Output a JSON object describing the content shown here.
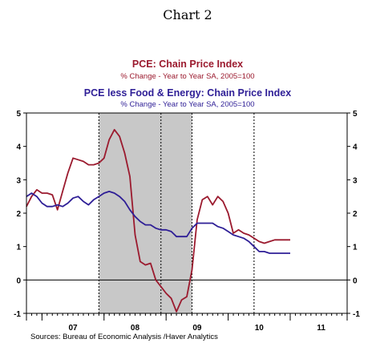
{
  "chart_data": {
    "type": "line",
    "title": "Chart 2",
    "series": [
      {
        "name": "PCE: Chain Price Index",
        "subtitle": "% Change - Year to Year     SA, 2005=100",
        "color": "#9b1a2e",
        "x": [
          2006.75,
          2006.833,
          2006.917,
          2007.0,
          2007.083,
          2007.167,
          2007.25,
          2007.333,
          2007.417,
          2007.5,
          2007.583,
          2007.667,
          2007.75,
          2007.833,
          2007.917,
          2008.0,
          2008.083,
          2008.167,
          2008.25,
          2008.333,
          2008.417,
          2008.5,
          2008.583,
          2008.667,
          2008.75,
          2008.833,
          2008.917,
          2009.0,
          2009.083,
          2009.167,
          2009.25,
          2009.333,
          2009.417,
          2009.5,
          2009.583,
          2009.667,
          2009.75,
          2009.833,
          2009.917,
          2010.0,
          2010.083,
          2010.167,
          2010.25,
          2010.333,
          2010.417,
          2010.5,
          2010.583,
          2010.667,
          2010.75,
          2010.833,
          2010.917,
          2011.0
        ],
        "values": [
          2.2,
          2.5,
          2.7,
          2.6,
          2.6,
          2.55,
          2.1,
          2.65,
          3.2,
          3.65,
          3.6,
          3.55,
          3.45,
          3.45,
          3.5,
          3.65,
          4.2,
          4.5,
          4.3,
          3.8,
          3.1,
          1.35,
          0.55,
          0.45,
          0.5,
          0.0,
          -0.2,
          -0.4,
          -0.55,
          -0.95,
          -0.6,
          -0.5,
          0.3,
          1.8,
          2.4,
          2.5,
          2.25,
          2.5,
          2.35,
          2.0,
          1.4,
          1.5,
          1.4,
          1.35,
          1.25,
          1.15,
          1.1,
          1.15,
          1.2,
          1.2,
          1.2,
          1.2
        ]
      },
      {
        "name": "PCE less Food & Energy: Chain Price Index",
        "subtitle": "% Change - Year to Year     SA, 2005=100",
        "color": "#2e1e96",
        "x": [
          2006.75,
          2006.833,
          2006.917,
          2007.0,
          2007.083,
          2007.167,
          2007.25,
          2007.333,
          2007.417,
          2007.5,
          2007.583,
          2007.667,
          2007.75,
          2007.833,
          2007.917,
          2008.0,
          2008.083,
          2008.167,
          2008.25,
          2008.333,
          2008.417,
          2008.5,
          2008.583,
          2008.667,
          2008.75,
          2008.833,
          2008.917,
          2009.0,
          2009.083,
          2009.167,
          2009.25,
          2009.333,
          2009.417,
          2009.5,
          2009.583,
          2009.667,
          2009.75,
          2009.833,
          2009.917,
          2010.0,
          2010.083,
          2010.167,
          2010.25,
          2010.333,
          2010.417,
          2010.5,
          2010.583,
          2010.667,
          2010.75,
          2010.833,
          2010.917,
          2011.0
        ],
        "values": [
          2.5,
          2.6,
          2.5,
          2.3,
          2.2,
          2.2,
          2.25,
          2.2,
          2.3,
          2.45,
          2.5,
          2.35,
          2.25,
          2.4,
          2.5,
          2.6,
          2.65,
          2.6,
          2.5,
          2.35,
          2.1,
          1.9,
          1.75,
          1.65,
          1.65,
          1.55,
          1.5,
          1.5,
          1.45,
          1.3,
          1.3,
          1.3,
          1.55,
          1.7,
          1.7,
          1.7,
          1.7,
          1.6,
          1.55,
          1.45,
          1.35,
          1.3,
          1.25,
          1.15,
          1.0,
          0.85,
          0.85,
          0.8,
          0.8,
          0.8,
          0.8,
          0.8
        ]
      }
    ],
    "recession": [
      2007.917,
      2009.417
    ],
    "xlim": [
      2006.75,
      2011.917
    ],
    "ylim": [
      -1,
      5
    ],
    "yticks": [
      -1,
      0,
      1,
      2,
      3,
      4,
      5
    ],
    "xtick_labels": [
      {
        "label": "07",
        "x": 2007.5
      },
      {
        "label": "08",
        "x": 2008.5
      },
      {
        "label": "09",
        "x": 2009.5
      },
      {
        "label": "10",
        "x": 2010.5
      },
      {
        "label": "11",
        "x": 2011.5
      }
    ],
    "xdividers": [
      2007.0,
      2008.0,
      2009.0,
      2010.0,
      2011.0
    ],
    "vlines": [
      2008.917,
      2010.417
    ],
    "zero_line": 0,
    "source": "Sources:  Bureau of Economic Analysis /Haver Analytics"
  }
}
